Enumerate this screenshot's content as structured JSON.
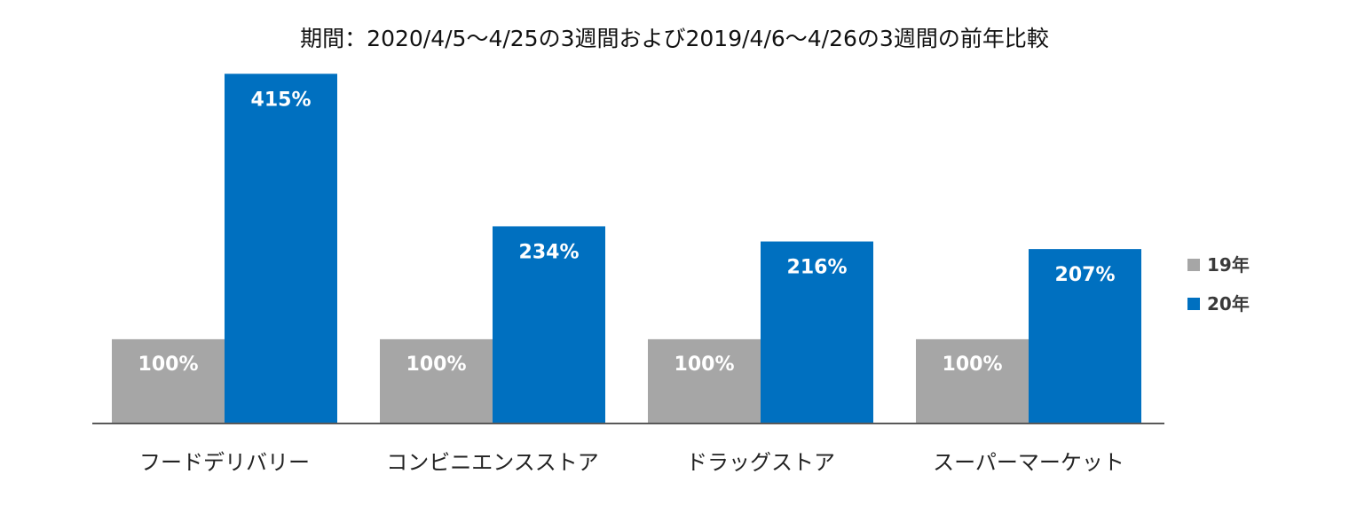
{
  "chart_data": {
    "type": "bar",
    "title": "期間：2020/4/5～4/25の3週間および2019/4/6～4/26の3週間の前年比較",
    "categories": [
      "フードデリバリー",
      "コンビニエンスストア",
      "ドラッグストア",
      "スーパーマーケット"
    ],
    "series": [
      {
        "name": "19年",
        "color": "#a6a6a6",
        "values": [
          100,
          100,
          100,
          100
        ],
        "labels": [
          "100%",
          "100%",
          "100%",
          "100%"
        ]
      },
      {
        "name": "20年",
        "color": "#0070c0",
        "values": [
          415,
          234,
          216,
          207
        ],
        "labels": [
          "415%",
          "234%",
          "216%",
          "207%"
        ]
      }
    ],
    "ylim": [
      0,
      450
    ],
    "legend": "right",
    "grid": false,
    "xlabel": "",
    "ylabel": ""
  }
}
